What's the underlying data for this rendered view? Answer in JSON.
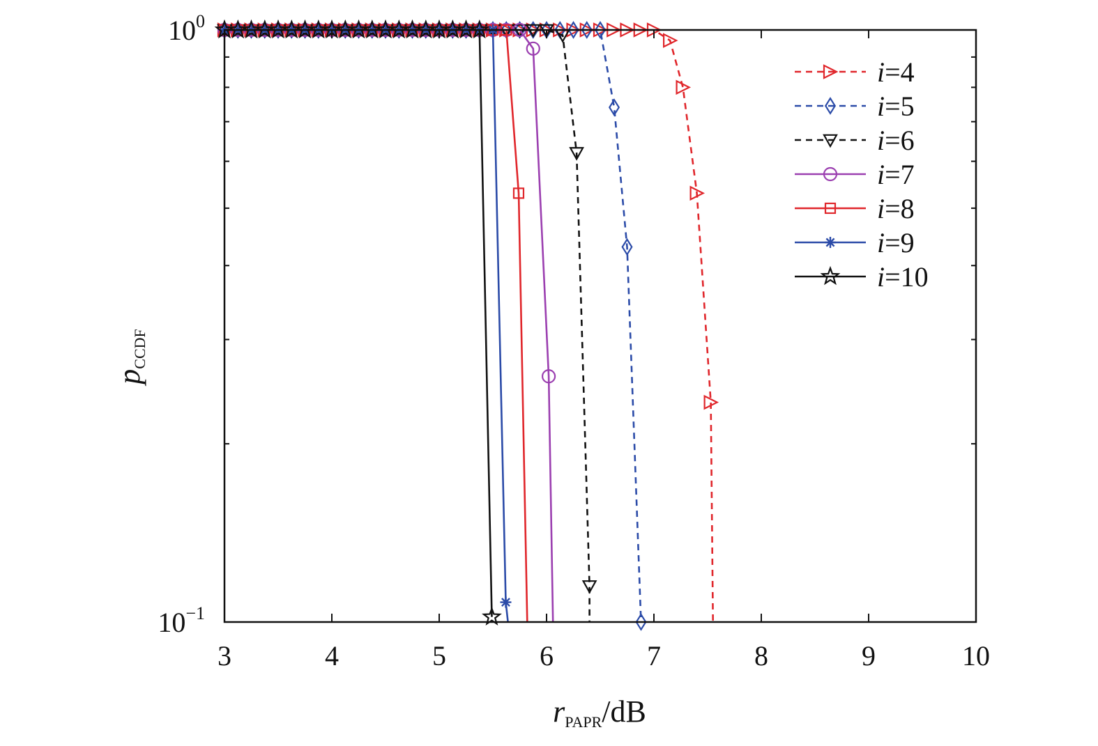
{
  "chart_data": {
    "type": "line",
    "title": "",
    "xlabel": {
      "main": "r",
      "subscript": "PAPR",
      "suffix": "/dB"
    },
    "ylabel": {
      "main": "p",
      "subscript": "CCDF"
    },
    "xlim": [
      3,
      10
    ],
    "ylim": [
      0.1,
      1
    ],
    "yscale": "log",
    "x_ticks": [
      3,
      4,
      5,
      6,
      7,
      8,
      9,
      10
    ],
    "x_tick_labels": [
      "3",
      "4",
      "5",
      "6",
      "7",
      "8",
      "9",
      "10"
    ],
    "y_ticks": [
      {
        "value": 1,
        "base": "10",
        "exp": "0"
      },
      {
        "value": 0.1,
        "base": "10",
        "exp": "−1"
      }
    ],
    "grid": false,
    "legend_position": "top-right",
    "legend_prefix": "i",
    "series": [
      {
        "name": "=4",
        "color": "#e0262b",
        "dash": true,
        "marker": "triangle-right",
        "x": [
          3.0,
          3.125,
          3.25,
          3.375,
          3.5,
          3.625,
          3.75,
          3.875,
          4.0,
          4.125,
          4.25,
          4.375,
          4.5,
          4.625,
          4.75,
          4.875,
          5.0,
          5.125,
          5.25,
          5.375,
          5.5,
          5.625,
          5.75,
          5.875,
          6.0,
          6.125,
          6.25,
          6.375,
          6.5,
          6.625,
          6.75,
          6.875,
          7.0,
          7.15,
          7.27,
          7.4,
          7.53,
          7.55
        ],
        "y": [
          1,
          1,
          1,
          1,
          1,
          1,
          1,
          1,
          1,
          1,
          1,
          1,
          1,
          1,
          1,
          1,
          1,
          1,
          1,
          1,
          1,
          1,
          1,
          1,
          1,
          1,
          1,
          1,
          1,
          1,
          1,
          1,
          1,
          0.96,
          0.8,
          0.53,
          0.235,
          0.1
        ],
        "marker_x": [
          3.0,
          3.125,
          3.25,
          3.375,
          3.5,
          3.625,
          3.75,
          3.875,
          4.0,
          4.125,
          4.25,
          4.375,
          4.5,
          4.625,
          4.75,
          4.875,
          5.0,
          5.125,
          5.25,
          5.375,
          5.5,
          5.625,
          5.75,
          5.875,
          6.0,
          6.125,
          6.25,
          6.375,
          6.5,
          6.625,
          6.75,
          6.875,
          7.0,
          7.15,
          7.27,
          7.4,
          7.53
        ],
        "marker_y": [
          1,
          1,
          1,
          1,
          1,
          1,
          1,
          1,
          1,
          1,
          1,
          1,
          1,
          1,
          1,
          1,
          1,
          1,
          1,
          1,
          1,
          1,
          1,
          1,
          1,
          1,
          1,
          1,
          1,
          1,
          1,
          1,
          1,
          0.96,
          0.8,
          0.53,
          0.235
        ]
      },
      {
        "name": "=5",
        "color": "#2b4ba8",
        "dash": true,
        "marker": "diamond",
        "x": [
          3.0,
          3.125,
          3.25,
          3.375,
          3.5,
          3.625,
          3.75,
          3.875,
          4.0,
          4.125,
          4.25,
          4.375,
          4.5,
          4.625,
          4.75,
          4.875,
          5.0,
          5.125,
          5.25,
          5.375,
          5.5,
          5.625,
          5.75,
          5.875,
          6.0,
          6.125,
          6.25,
          6.375,
          6.5,
          6.63,
          6.75,
          6.88
        ],
        "y": [
          1,
          1,
          1,
          1,
          1,
          1,
          1,
          1,
          1,
          1,
          1,
          1,
          1,
          1,
          1,
          1,
          1,
          1,
          1,
          1,
          1,
          1,
          1,
          1,
          1,
          1,
          1,
          1,
          1,
          0.74,
          0.43,
          0.1
        ],
        "marker_x": [
          3.0,
          3.125,
          3.25,
          3.375,
          3.5,
          3.625,
          3.75,
          3.875,
          4.0,
          4.125,
          4.25,
          4.375,
          4.5,
          4.625,
          4.75,
          4.875,
          5.0,
          5.125,
          5.25,
          5.375,
          5.5,
          5.625,
          5.75,
          5.875,
          6.0,
          6.125,
          6.25,
          6.375,
          6.5,
          6.63,
          6.75,
          6.88
        ],
        "marker_y": [
          1,
          1,
          1,
          1,
          1,
          1,
          1,
          1,
          1,
          1,
          1,
          1,
          1,
          1,
          1,
          1,
          1,
          1,
          1,
          1,
          1,
          1,
          1,
          1,
          1,
          1,
          1,
          1,
          1,
          0.74,
          0.43,
          0.1
        ]
      },
      {
        "name": "=6",
        "color": "#111111",
        "dash": true,
        "marker": "triangle-down",
        "x": [
          3.0,
          3.125,
          3.25,
          3.375,
          3.5,
          3.625,
          3.75,
          3.875,
          4.0,
          4.125,
          4.25,
          4.375,
          4.5,
          4.625,
          4.75,
          4.875,
          5.0,
          5.125,
          5.25,
          5.375,
          5.5,
          5.625,
          5.75,
          5.875,
          6.0,
          6.15,
          6.28,
          6.4,
          6.4
        ],
        "y": [
          1,
          1,
          1,
          1,
          1,
          1,
          1,
          1,
          1,
          1,
          1,
          1,
          1,
          1,
          1,
          1,
          1,
          1,
          1,
          1,
          1,
          1,
          1,
          1,
          1,
          0.98,
          0.62,
          0.115,
          0.1
        ],
        "marker_x": [
          3.0,
          3.125,
          3.25,
          3.375,
          3.5,
          3.625,
          3.75,
          3.875,
          4.0,
          4.125,
          4.25,
          4.375,
          4.5,
          4.625,
          4.75,
          4.875,
          5.0,
          5.125,
          5.25,
          5.375,
          5.5,
          5.625,
          5.75,
          5.875,
          6.0,
          6.15,
          6.28,
          6.4
        ],
        "marker_y": [
          1,
          1,
          1,
          1,
          1,
          1,
          1,
          1,
          1,
          1,
          1,
          1,
          1,
          1,
          1,
          1,
          1,
          1,
          1,
          1,
          1,
          1,
          1,
          1,
          1,
          0.98,
          0.62,
          0.115
        ]
      },
      {
        "name": "=7",
        "color": "#9b3fb0",
        "dash": false,
        "marker": "circle",
        "x": [
          3.0,
          3.125,
          3.25,
          3.375,
          3.5,
          3.625,
          3.75,
          3.875,
          4.0,
          4.125,
          4.25,
          4.375,
          4.5,
          4.625,
          4.75,
          4.875,
          5.0,
          5.125,
          5.25,
          5.375,
          5.5,
          5.625,
          5.75,
          5.875,
          6.02,
          6.06
        ],
        "y": [
          1,
          1,
          1,
          1,
          1,
          1,
          1,
          1,
          1,
          1,
          1,
          1,
          1,
          1,
          1,
          1,
          1,
          1,
          1,
          1,
          1,
          1,
          1,
          0.93,
          0.26,
          0.1
        ],
        "marker_x": [
          3.0,
          3.125,
          3.25,
          3.375,
          3.5,
          3.625,
          3.75,
          3.875,
          4.0,
          4.125,
          4.25,
          4.375,
          4.5,
          4.625,
          4.75,
          4.875,
          5.0,
          5.125,
          5.25,
          5.375,
          5.5,
          5.625,
          5.75,
          5.875,
          6.02
        ],
        "marker_y": [
          1,
          1,
          1,
          1,
          1,
          1,
          1,
          1,
          1,
          1,
          1,
          1,
          1,
          1,
          1,
          1,
          1,
          1,
          1,
          1,
          1,
          1,
          1,
          0.93,
          0.26
        ]
      },
      {
        "name": "=8",
        "color": "#e0262b",
        "dash": false,
        "marker": "square",
        "x": [
          3.0,
          3.125,
          3.25,
          3.375,
          3.5,
          3.625,
          3.75,
          3.875,
          4.0,
          4.125,
          4.25,
          4.375,
          4.5,
          4.625,
          4.75,
          4.875,
          5.0,
          5.125,
          5.25,
          5.375,
          5.5,
          5.625,
          5.74,
          5.82
        ],
        "y": [
          1,
          1,
          1,
          1,
          1,
          1,
          1,
          1,
          1,
          1,
          1,
          1,
          1,
          1,
          1,
          1,
          1,
          1,
          1,
          1,
          1,
          1,
          0.53,
          0.1
        ],
        "marker_x": [
          3.0,
          3.125,
          3.25,
          3.375,
          3.5,
          3.625,
          3.75,
          3.875,
          4.0,
          4.125,
          4.25,
          4.375,
          4.5,
          4.625,
          4.75,
          4.875,
          5.0,
          5.125,
          5.25,
          5.375,
          5.5,
          5.625,
          5.74
        ],
        "marker_y": [
          1,
          1,
          1,
          1,
          1,
          1,
          1,
          1,
          1,
          1,
          1,
          1,
          1,
          1,
          1,
          1,
          1,
          1,
          1,
          1,
          1,
          1,
          0.53
        ]
      },
      {
        "name": "=9",
        "color": "#2b4ba8",
        "dash": false,
        "marker": "asterisk",
        "x": [
          3.0,
          3.125,
          3.25,
          3.375,
          3.5,
          3.625,
          3.75,
          3.875,
          4.0,
          4.125,
          4.25,
          4.375,
          4.5,
          4.625,
          4.75,
          4.875,
          5.0,
          5.125,
          5.25,
          5.375,
          5.5,
          5.62,
          5.64
        ],
        "y": [
          1,
          1,
          1,
          1,
          1,
          1,
          1,
          1,
          1,
          1,
          1,
          1,
          1,
          1,
          1,
          1,
          1,
          1,
          1,
          1,
          1,
          0.108,
          0.1
        ],
        "marker_x": [
          3.0,
          3.125,
          3.25,
          3.375,
          3.5,
          3.625,
          3.75,
          3.875,
          4.0,
          4.125,
          4.25,
          4.375,
          4.5,
          4.625,
          4.75,
          4.875,
          5.0,
          5.125,
          5.25,
          5.375,
          5.5,
          5.62
        ],
        "marker_y": [
          1,
          1,
          1,
          1,
          1,
          1,
          1,
          1,
          1,
          1,
          1,
          1,
          1,
          1,
          1,
          1,
          1,
          1,
          1,
          1,
          1,
          0.108
        ]
      },
      {
        "name": "=10",
        "color": "#111111",
        "dash": false,
        "marker": "star",
        "x": [
          3.0,
          3.125,
          3.25,
          3.375,
          3.5,
          3.625,
          3.75,
          3.875,
          4.0,
          4.125,
          4.25,
          4.375,
          4.5,
          4.625,
          4.75,
          4.875,
          5.0,
          5.125,
          5.25,
          5.375,
          5.49
        ],
        "y": [
          1,
          1,
          1,
          1,
          1,
          1,
          1,
          1,
          1,
          1,
          1,
          1,
          1,
          1,
          1,
          1,
          1,
          1,
          1,
          1,
          0.102
        ],
        "marker_x": [
          3.0,
          3.125,
          3.25,
          3.375,
          3.5,
          3.625,
          3.75,
          3.875,
          4.0,
          4.125,
          4.25,
          4.375,
          4.5,
          4.625,
          4.75,
          4.875,
          5.0,
          5.125,
          5.25,
          5.375,
          5.49
        ],
        "marker_y": [
          1,
          1,
          1,
          1,
          1,
          1,
          1,
          1,
          1,
          1,
          1,
          1,
          1,
          1,
          1,
          1,
          1,
          1,
          1,
          1,
          0.102
        ]
      }
    ]
  }
}
